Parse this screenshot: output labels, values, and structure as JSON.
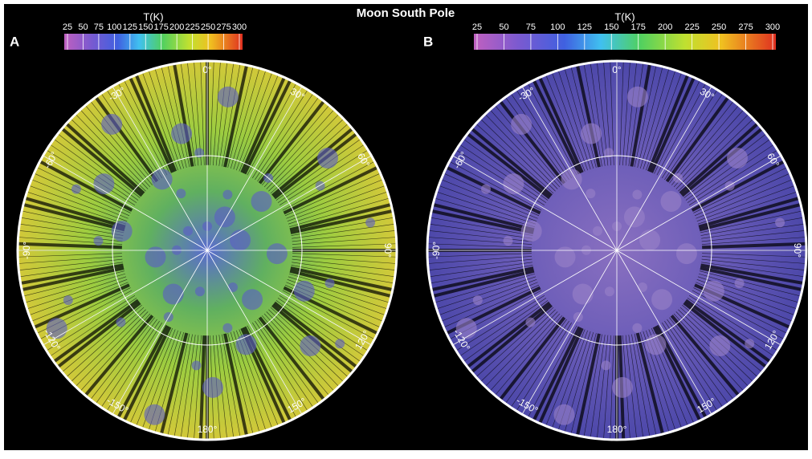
{
  "title": "Moon South Pole",
  "panels": [
    {
      "label": "A",
      "colorbar": {
        "title": "T(K)",
        "ticks": [
          25,
          50,
          75,
          100,
          125,
          150,
          175,
          200,
          225,
          250,
          275,
          300
        ]
      },
      "angles": [
        "0°",
        "30°",
        "60°",
        "90°",
        "120°",
        "150°",
        "180°",
        "-150°",
        "-120°",
        "-90°",
        "-60°",
        "-30°"
      ]
    },
    {
      "label": "B",
      "colorbar": {
        "title": "T(K)",
        "ticks": [
          25,
          50,
          75,
          100,
          125,
          150,
          175,
          200,
          225,
          250,
          275,
          300
        ]
      },
      "angles": [
        "0°",
        "30°",
        "60°",
        "90°",
        "120°",
        "150°",
        "180°",
        "-150°",
        "-120°",
        "-90°",
        "-60°",
        "-30°"
      ]
    }
  ]
}
